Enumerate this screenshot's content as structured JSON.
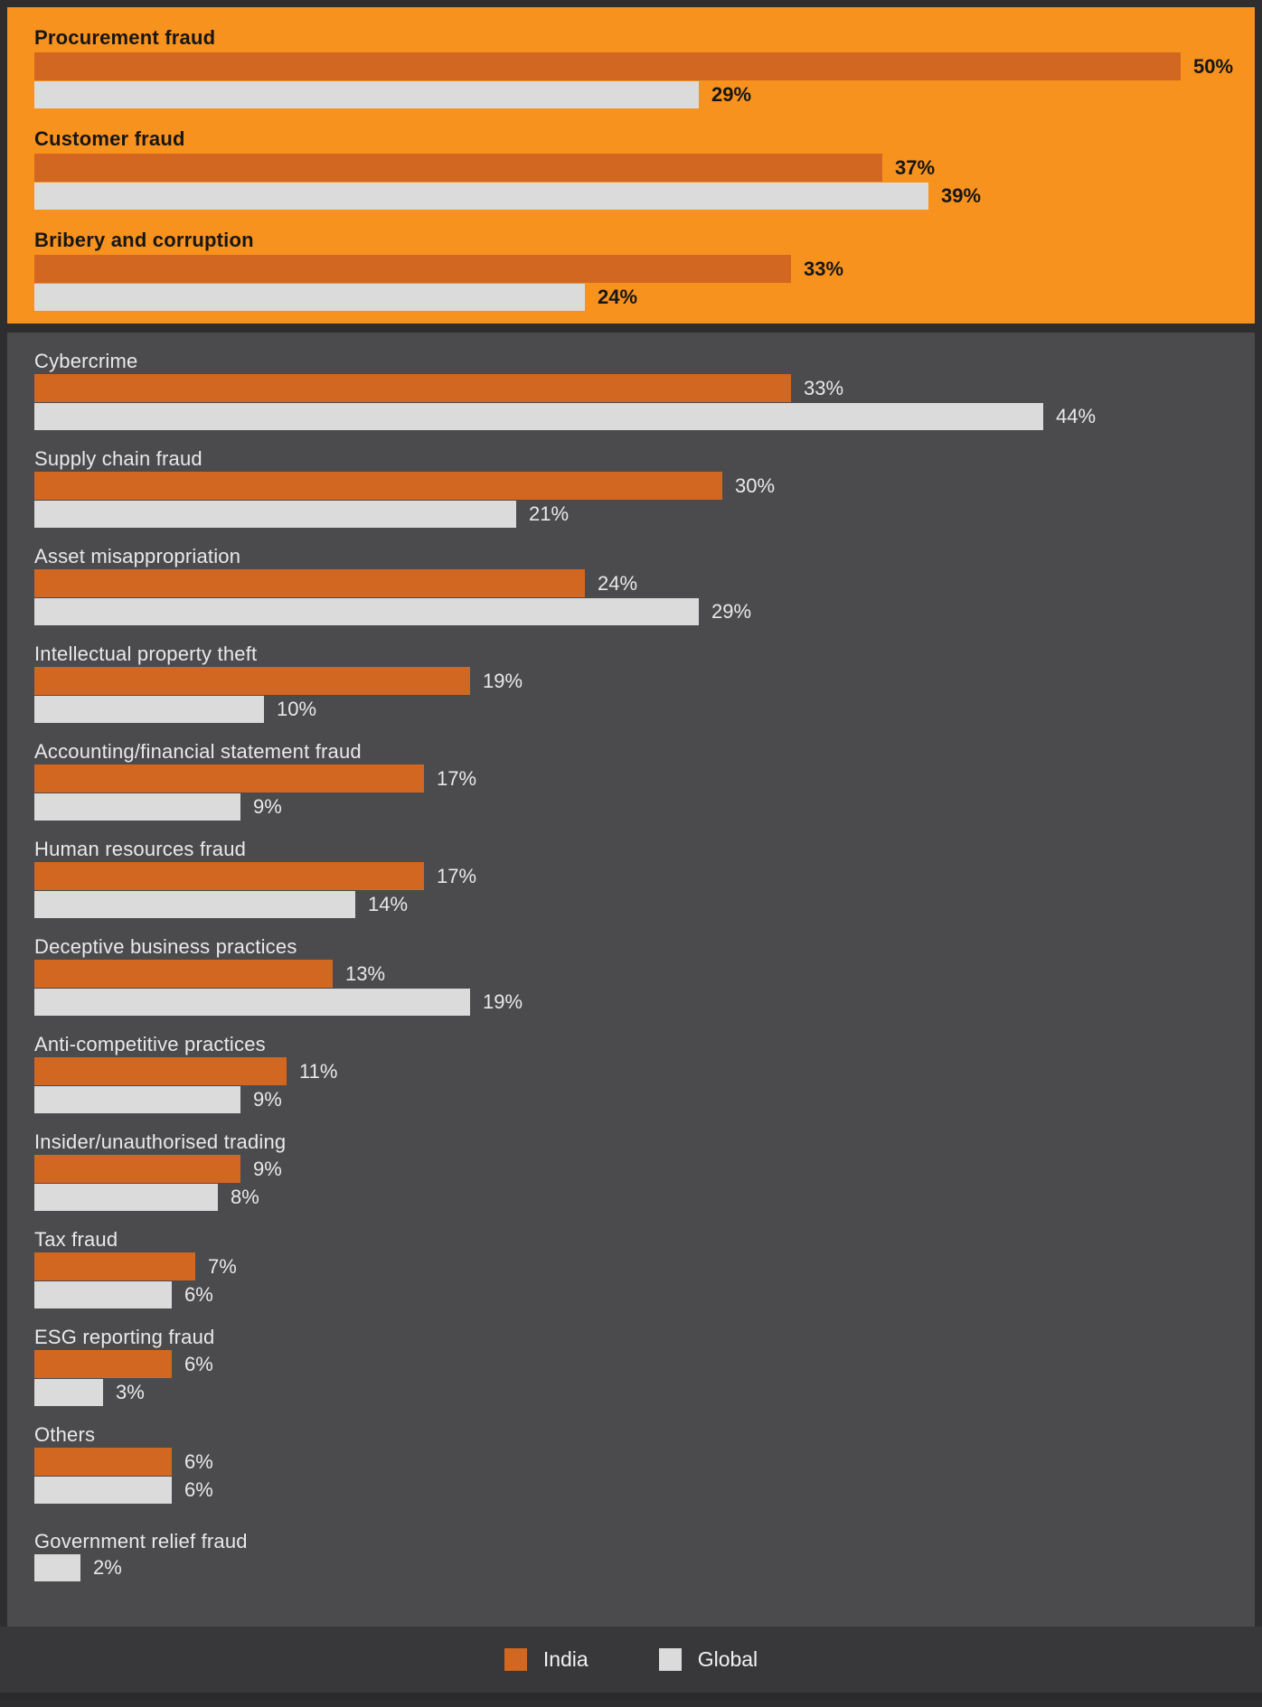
{
  "chart_data": {
    "type": "bar",
    "orientation": "horizontal",
    "value_unit": "%",
    "series_names": [
      "India",
      "Global"
    ],
    "axis_max_implied": 55,
    "grid": false,
    "legend_position": "bottom-center",
    "sections": [
      {
        "id": "top3-highlighted",
        "style": "orange",
        "rows": [
          {
            "category": "Procurement fraud",
            "india": 50,
            "global": 29
          },
          {
            "category": "Customer fraud",
            "india": 37,
            "global": 39
          },
          {
            "category": "Bribery and corruption",
            "india": 33,
            "global": 24
          }
        ]
      },
      {
        "id": "remaining-categories",
        "style": "dark",
        "rows": [
          {
            "category": "Cybercrime",
            "india": 33,
            "global": 44
          },
          {
            "category": "Supply chain fraud",
            "india": 30,
            "global": 21
          },
          {
            "category": "Asset misappropriation",
            "india": 24,
            "global": 29
          },
          {
            "category": "Intellectual property theft",
            "india": 19,
            "global": 10
          },
          {
            "category": "Accounting/financial statement fraud",
            "india": 17,
            "global": 9
          },
          {
            "category": "Human resources fraud",
            "india": 17,
            "global": 14
          },
          {
            "category": "Deceptive business practices",
            "india": 13,
            "global": 19
          },
          {
            "category": "Anti-competitive practices",
            "india": 11,
            "global": 9
          },
          {
            "category": "Insider/unauthorised trading",
            "india": 9,
            "global": 8
          },
          {
            "category": "Tax fraud",
            "india": 7,
            "global": 6
          },
          {
            "category": "ESG reporting fraud",
            "india": 6,
            "global": 3
          },
          {
            "category": "Others",
            "india": 6,
            "global": 6
          },
          {
            "category": "Government relief fraud",
            "india": null,
            "global": 2,
            "extra_gap": true
          }
        ]
      }
    ]
  },
  "legend": {
    "items": [
      {
        "label": "India",
        "color": "#D26721"
      },
      {
        "label": "Global",
        "color": "#DBDBDC"
      }
    ]
  },
  "colors": {
    "panel_orange": "#F7921E",
    "panel_dark": "#4B4B4D",
    "frame": "#2E2E30",
    "legend_bg": "#38383A",
    "bottom_strip": "#2A2A2C",
    "india_bar": "#D26721",
    "global_bar": "#DBDBDC",
    "text_on_orange": "#161616",
    "text_on_dark": "#E9E9EA"
  }
}
